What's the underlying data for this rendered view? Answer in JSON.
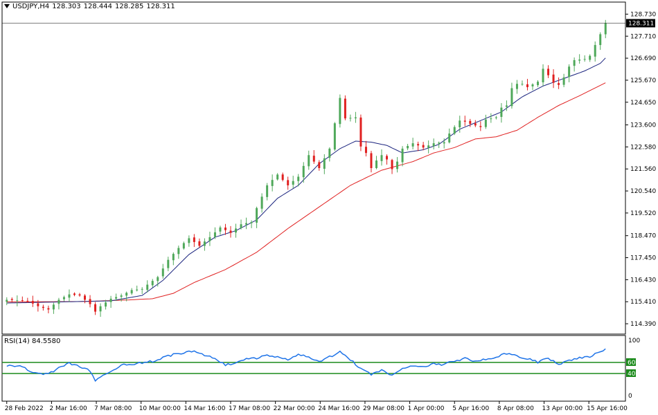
{
  "header": {
    "symbol": "USDJPY,H4",
    "open": "128.303",
    "high": "128.444",
    "low": "128.285",
    "close": "128.311"
  },
  "rsi_header": {
    "label": "RSI(14)",
    "value": "84.5580"
  },
  "colors": {
    "bull": "#4fa85a",
    "bear": "#e02020",
    "ma_fast": "#1a237e",
    "ma_slow": "#e02020",
    "rsi_line": "#1e73e8",
    "rsi_levels": "#1a8a1a",
    "price_tag_bg": "#000000",
    "price_tag_fg": "#ffffff"
  },
  "chart_data": [
    {
      "type": "candlestick",
      "title": "USDJPY,H4",
      "ylim": [
        114.2,
        129.0
      ],
      "yticks": [
        "128.730",
        "127.710",
        "126.690",
        "125.670",
        "124.650",
        "123.600",
        "122.580",
        "121.560",
        "120.540",
        "119.520",
        "118.470",
        "117.450",
        "116.430",
        "115.410",
        "114.390"
      ],
      "current_price": "128.311",
      "xticks": [
        "28 Feb 2022",
        "2 Mar 16:00",
        "7 Mar 08:00",
        "10 Mar 00:00",
        "14 Mar 16:00",
        "17 Mar 08:00",
        "22 Mar 00:00",
        "24 Mar 16:00",
        "29 Mar 08:00",
        "1 Apr 00:00",
        "5 Apr 16:00",
        "8 Apr 08:00",
        "13 Apr 00:00",
        "15 Apr 16:00"
      ],
      "close_path": [
        [
          0,
          115.5
        ],
        [
          4,
          115.45
        ],
        [
          6,
          115.2
        ],
        [
          8,
          115.05
        ],
        [
          10,
          115.5
        ],
        [
          12,
          115.75
        ],
        [
          14,
          115.7
        ],
        [
          16,
          115.3
        ],
        [
          17,
          114.95
        ],
        [
          18,
          115.2
        ],
        [
          20,
          115.55
        ],
        [
          22,
          115.7
        ],
        [
          24,
          115.95
        ],
        [
          26,
          116.0
        ],
        [
          27,
          116.2
        ],
        [
          29,
          116.55
        ],
        [
          31,
          117.35
        ],
        [
          33,
          117.9
        ],
        [
          35,
          118.35
        ],
        [
          37,
          118.0
        ],
        [
          39,
          118.4
        ],
        [
          41,
          118.85
        ],
        [
          43,
          118.6
        ],
        [
          45,
          119.0
        ],
        [
          47,
          119.1
        ],
        [
          48,
          119.75
        ],
        [
          50,
          120.8
        ],
        [
          52,
          121.3
        ],
        [
          54,
          120.8
        ],
        [
          56,
          121.2
        ],
        [
          58,
          122.2
        ],
        [
          60,
          121.6
        ],
        [
          62,
          122.5
        ],
        [
          64,
          124.85
        ],
        [
          65,
          123.9
        ],
        [
          67,
          123.95
        ],
        [
          68,
          122.6
        ],
        [
          69,
          122.3
        ],
        [
          70,
          121.6
        ],
        [
          71,
          121.95
        ],
        [
          72,
          122.2
        ],
        [
          73,
          122.0
        ],
        [
          74,
          121.55
        ],
        [
          75,
          121.9
        ],
        [
          76,
          122.5
        ],
        [
          78,
          122.75
        ],
        [
          80,
          122.55
        ],
        [
          82,
          122.75
        ],
        [
          84,
          122.8
        ],
        [
          85,
          123.2
        ],
        [
          87,
          123.8
        ],
        [
          88,
          123.75
        ],
        [
          89,
          123.65
        ],
        [
          91,
          123.5
        ],
        [
          92,
          123.85
        ],
        [
          94,
          123.95
        ],
        [
          95,
          124.4
        ],
        [
          96,
          124.5
        ],
        [
          97,
          125.3
        ],
        [
          98,
          125.5
        ],
        [
          99,
          125.5
        ],
        [
          100,
          125.35
        ],
        [
          102,
          125.6
        ],
        [
          103,
          126.2
        ],
        [
          104,
          125.9
        ],
        [
          105,
          125.55
        ],
        [
          106,
          125.45
        ],
        [
          107,
          125.8
        ],
        [
          108,
          126.3
        ],
        [
          109,
          126.6
        ],
        [
          111,
          126.65
        ],
        [
          112,
          126.8
        ],
        [
          113,
          127.3
        ],
        [
          114,
          127.8
        ],
        [
          115,
          128.311
        ]
      ],
      "ma_fast_path": [
        [
          0,
          115.35
        ],
        [
          10,
          115.4
        ],
        [
          20,
          115.45
        ],
        [
          26,
          115.7
        ],
        [
          30,
          116.4
        ],
        [
          35,
          117.6
        ],
        [
          40,
          118.4
        ],
        [
          44,
          118.7
        ],
        [
          48,
          119.2
        ],
        [
          52,
          120.2
        ],
        [
          56,
          120.8
        ],
        [
          60,
          121.8
        ],
        [
          64,
          122.5
        ],
        [
          67,
          122.85
        ],
        [
          70,
          122.8
        ],
        [
          73,
          122.65
        ],
        [
          76,
          122.3
        ],
        [
          80,
          122.45
        ],
        [
          83,
          122.7
        ],
        [
          87,
          123.4
        ],
        [
          91,
          123.8
        ],
        [
          95,
          124.2
        ],
        [
          99,
          124.9
        ],
        [
          103,
          125.4
        ],
        [
          107,
          125.75
        ],
        [
          111,
          126.1
        ],
        [
          114,
          126.45
        ],
        [
          115,
          126.7
        ]
      ],
      "ma_slow_path": [
        [
          0,
          115.4
        ],
        [
          15,
          115.42
        ],
        [
          24,
          115.5
        ],
        [
          28,
          115.55
        ],
        [
          32,
          115.8
        ],
        [
          36,
          116.3
        ],
        [
          42,
          116.9
        ],
        [
          48,
          117.7
        ],
        [
          54,
          118.8
        ],
        [
          60,
          119.8
        ],
        [
          66,
          120.8
        ],
        [
          72,
          121.5
        ],
        [
          78,
          121.9
        ],
        [
          82,
          122.3
        ],
        [
          86,
          122.55
        ],
        [
          90,
          122.95
        ],
        [
          94,
          123.05
        ],
        [
          98,
          123.35
        ],
        [
          102,
          123.95
        ],
        [
          106,
          124.5
        ],
        [
          110,
          124.95
        ],
        [
          115,
          125.55
        ]
      ]
    },
    {
      "type": "line",
      "title": "RSI(14)",
      "ylim": [
        0,
        100
      ],
      "yticks": [
        "100",
        "60",
        "40",
        "0"
      ],
      "levels": [
        60,
        40
      ],
      "series": [
        {
          "name": "RSI(14)",
          "values": [
            [
              0,
              55
            ],
            [
              3,
              52
            ],
            [
              5,
              42
            ],
            [
              7,
              38
            ],
            [
              9,
              45
            ],
            [
              12,
              58
            ],
            [
              14,
              52
            ],
            [
              16,
              45
            ],
            [
              17,
              28
            ],
            [
              19,
              40
            ],
            [
              22,
              55
            ],
            [
              25,
              58
            ],
            [
              28,
              62
            ],
            [
              31,
              72
            ],
            [
              34,
              78
            ],
            [
              36,
              80
            ],
            [
              38,
              72
            ],
            [
              40,
              68
            ],
            [
              42,
              55
            ],
            [
              44,
              58
            ],
            [
              46,
              66
            ],
            [
              48,
              68
            ],
            [
              50,
              72
            ],
            [
              52,
              69
            ],
            [
              54,
              66
            ],
            [
              56,
              75
            ],
            [
              58,
              70
            ],
            [
              60,
              60
            ],
            [
              62,
              70
            ],
            [
              64,
              80
            ],
            [
              66,
              65
            ],
            [
              68,
              48
            ],
            [
              70,
              38
            ],
            [
              72,
              45
            ],
            [
              74,
              38
            ],
            [
              76,
              48
            ],
            [
              78,
              54
            ],
            [
              80,
              52
            ],
            [
              82,
              58
            ],
            [
              84,
              56
            ],
            [
              86,
              63
            ],
            [
              88,
              67
            ],
            [
              90,
              63
            ],
            [
              92,
              65
            ],
            [
              94,
              70
            ],
            [
              96,
              76
            ],
            [
              98,
              72
            ],
            [
              100,
              67
            ],
            [
              102,
              60
            ],
            [
              104,
              68
            ],
            [
              106,
              55
            ],
            [
              108,
              64
            ],
            [
              110,
              68
            ],
            [
              112,
              70
            ],
            [
              114,
              80
            ],
            [
              115,
              84.558
            ]
          ]
        }
      ]
    }
  ]
}
